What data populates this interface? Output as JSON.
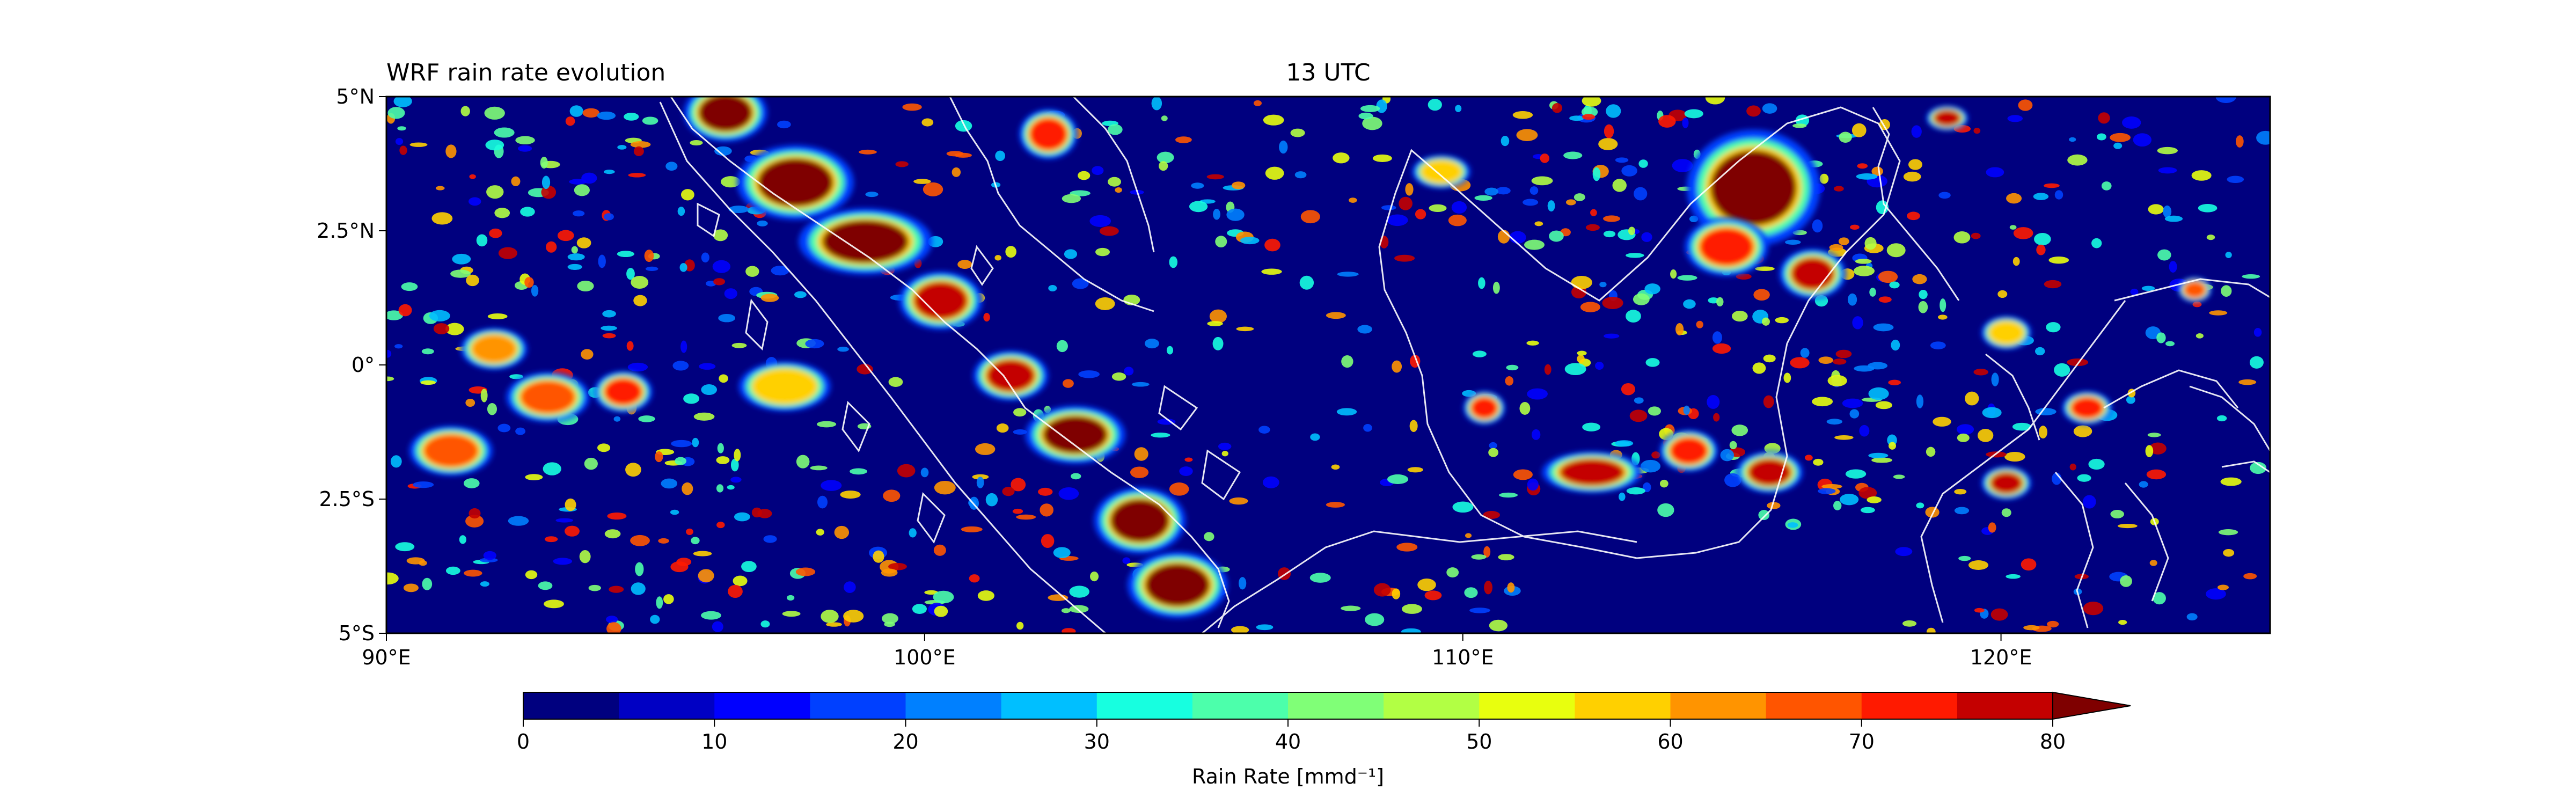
{
  "chart_data": {
    "type": "heatmap",
    "title_left": "WRF rain rate evolution",
    "title_center": "13 UTC",
    "x_ticks": [
      {
        "value": 90,
        "label": "90°E"
      },
      {
        "value": 100,
        "label": "100°E"
      },
      {
        "value": 110,
        "label": "110°E"
      },
      {
        "value": 120,
        "label": "120°E"
      }
    ],
    "y_ticks": [
      {
        "value": 5,
        "label": "5°N"
      },
      {
        "value": 2.5,
        "label": "2.5°N"
      },
      {
        "value": 0,
        "label": "0°"
      },
      {
        "value": -2.5,
        "label": "2.5°S"
      },
      {
        "value": -5,
        "label": "5°S"
      }
    ],
    "xlim": [
      90,
      125
    ],
    "ylim": [
      -5,
      5
    ],
    "colorbar": {
      "label": "Rain Rate [mmd⁻¹]",
      "min": 0,
      "max": 80,
      "step": 5,
      "extend": "max",
      "tick_values": [
        0,
        10,
        20,
        30,
        40,
        50,
        60,
        70,
        80
      ],
      "tick_labels": [
        "0",
        "10",
        "20",
        "30",
        "40",
        "50",
        "60",
        "70",
        "80"
      ],
      "colors": [
        "#00007f",
        "#0000c4",
        "#0000ff",
        "#0040ff",
        "#0080ff",
        "#00bfff",
        "#17ffe0",
        "#4cffab",
        "#80ff77",
        "#b2ff44",
        "#e8ff0e",
        "#ffd000",
        "#ff9400",
        "#ff5500",
        "#ff1a00",
        "#c40000"
      ],
      "over_color": "#7f0000"
    },
    "rain_cores": [
      {
        "lon": 96.3,
        "lat": 4.7,
        "rx": 0.5,
        "ry": 0.35,
        "level": 80
      },
      {
        "lon": 97.6,
        "lat": 3.4,
        "rx": 0.7,
        "ry": 0.45,
        "level": 80
      },
      {
        "lon": 98.9,
        "lat": 2.3,
        "rx": 0.8,
        "ry": 0.4,
        "level": 80
      },
      {
        "lon": 100.3,
        "lat": 1.2,
        "rx": 0.5,
        "ry": 0.35,
        "level": 75
      },
      {
        "lon": 101.6,
        "lat": -0.2,
        "rx": 0.45,
        "ry": 0.3,
        "level": 75
      },
      {
        "lon": 102.8,
        "lat": -1.3,
        "rx": 0.6,
        "ry": 0.35,
        "level": 80
      },
      {
        "lon": 104.0,
        "lat": -2.9,
        "rx": 0.55,
        "ry": 0.4,
        "level": 80
      },
      {
        "lon": 104.7,
        "lat": -4.1,
        "rx": 0.6,
        "ry": 0.4,
        "level": 80
      },
      {
        "lon": 115.4,
        "lat": 3.3,
        "rx": 0.8,
        "ry": 0.7,
        "level": 80
      },
      {
        "lon": 114.9,
        "lat": 2.2,
        "rx": 0.5,
        "ry": 0.35,
        "level": 70
      },
      {
        "lon": 116.5,
        "lat": 1.7,
        "rx": 0.4,
        "ry": 0.3,
        "level": 75
      },
      {
        "lon": 112.4,
        "lat": -2.0,
        "rx": 0.6,
        "ry": 0.25,
        "level": 75
      },
      {
        "lon": 114.2,
        "lat": -1.6,
        "rx": 0.35,
        "ry": 0.25,
        "level": 70
      },
      {
        "lon": 115.7,
        "lat": -2.0,
        "rx": 0.4,
        "ry": 0.25,
        "level": 75
      },
      {
        "lon": 110.4,
        "lat": -0.8,
        "rx": 0.25,
        "ry": 0.2,
        "level": 70
      },
      {
        "lon": 91.2,
        "lat": -1.6,
        "rx": 0.5,
        "ry": 0.3,
        "level": 65
      },
      {
        "lon": 93.0,
        "lat": -0.6,
        "rx": 0.5,
        "ry": 0.3,
        "level": 65
      },
      {
        "lon": 94.4,
        "lat": -0.5,
        "rx": 0.35,
        "ry": 0.25,
        "level": 70
      },
      {
        "lon": 92.0,
        "lat": 0.3,
        "rx": 0.4,
        "ry": 0.25,
        "level": 60
      },
      {
        "lon": 97.4,
        "lat": -0.4,
        "rx": 0.55,
        "ry": 0.3,
        "level": 55
      },
      {
        "lon": 102.3,
        "lat": 4.3,
        "rx": 0.35,
        "ry": 0.3,
        "level": 70
      },
      {
        "lon": 109.6,
        "lat": 3.6,
        "rx": 0.35,
        "ry": 0.2,
        "level": 55
      },
      {
        "lon": 119.0,
        "lat": 4.6,
        "rx": 0.25,
        "ry": 0.15,
        "level": 75
      },
      {
        "lon": 121.6,
        "lat": -0.8,
        "rx": 0.3,
        "ry": 0.2,
        "level": 70
      },
      {
        "lon": 120.1,
        "lat": -2.2,
        "rx": 0.3,
        "ry": 0.2,
        "level": 75
      },
      {
        "lon": 123.6,
        "lat": 1.4,
        "rx": 0.2,
        "ry": 0.15,
        "level": 65
      },
      {
        "lon": 120.1,
        "lat": 0.6,
        "rx": 0.3,
        "ry": 0.2,
        "level": 55
      }
    ]
  }
}
